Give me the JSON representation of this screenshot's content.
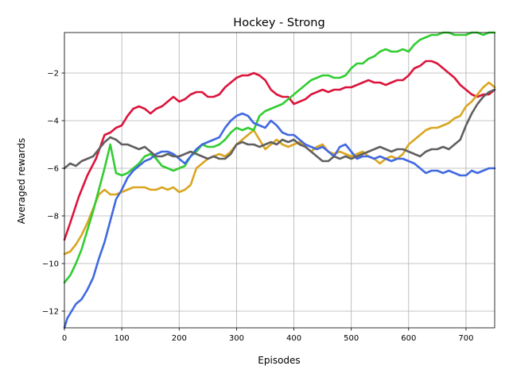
{
  "chart_data": {
    "type": "line",
    "title": "Hockey - Strong",
    "xlabel": "Episodes",
    "ylabel": "Averaged rewards",
    "xlim": [
      0,
      750
    ],
    "ylim": [
      -12.7,
      -0.3
    ],
    "xticks": [
      0,
      100,
      200,
      300,
      400,
      500,
      600,
      700
    ],
    "yticks": [
      -12,
      -10,
      -8,
      -6,
      -4,
      -2
    ],
    "xtick_labels": [
      "0",
      "100",
      "200",
      "300",
      "400",
      "500",
      "600",
      "700"
    ],
    "ytick_labels": [
      "−12",
      "−10",
      "−8",
      "−6",
      "−4",
      "−2"
    ],
    "grid": true,
    "series": [
      {
        "color": "#dc143c",
        "x": [
          0,
          10,
          25,
          40,
          55,
          70,
          80,
          90,
          100,
          110,
          120,
          130,
          140,
          150,
          160,
          170,
          180,
          190,
          200,
          210,
          220,
          230,
          240,
          250,
          260,
          270,
          280,
          290,
          300,
          310,
          320,
          330,
          340,
          350,
          360,
          370,
          380,
          390,
          400,
          410,
          420,
          430,
          440,
          450,
          460,
          470,
          480,
          490,
          500,
          510,
          520,
          530,
          540,
          550,
          560,
          570,
          580,
          590,
          600,
          610,
          620,
          630,
          640,
          650,
          660,
          670,
          680,
          690,
          700,
          710,
          720,
          730,
          740,
          750
        ],
        "y": [
          -9.0,
          -8.3,
          -7.2,
          -6.3,
          -5.6,
          -4.6,
          -4.5,
          -4.3,
          -4.2,
          -3.8,
          -3.5,
          -3.4,
          -3.5,
          -3.7,
          -3.5,
          -3.4,
          -3.2,
          -3.0,
          -3.2,
          -3.1,
          -2.9,
          -2.8,
          -2.8,
          -3.0,
          -3.0,
          -2.9,
          -2.6,
          -2.4,
          -2.2,
          -2.1,
          -2.1,
          -2.0,
          -2.1,
          -2.3,
          -2.7,
          -2.9,
          -3.0,
          -3.0,
          -3.3,
          -3.2,
          -3.1,
          -2.9,
          -2.8,
          -2.7,
          -2.8,
          -2.7,
          -2.7,
          -2.6,
          -2.6,
          -2.5,
          -2.4,
          -2.3,
          -2.4,
          -2.4,
          -2.5,
          -2.4,
          -2.3,
          -2.3,
          -2.1,
          -1.8,
          -1.7,
          -1.5,
          -1.5,
          -1.6,
          -1.8,
          -2.0,
          -2.2,
          -2.5,
          -2.7,
          -2.9,
          -3.0,
          -2.9,
          -2.9,
          -2.7
        ]
      },
      {
        "color": "#daa520",
        "x": [
          0,
          10,
          20,
          30,
          40,
          50,
          60,
          70,
          80,
          90,
          100,
          110,
          120,
          130,
          140,
          150,
          160,
          170,
          180,
          190,
          200,
          210,
          220,
          230,
          240,
          250,
          260,
          270,
          280,
          290,
          300,
          310,
          320,
          330,
          340,
          350,
          360,
          370,
          380,
          390,
          400,
          410,
          420,
          430,
          440,
          450,
          460,
          470,
          480,
          490,
          500,
          510,
          520,
          530,
          540,
          550,
          560,
          570,
          580,
          590,
          600,
          610,
          620,
          630,
          640,
          650,
          660,
          670,
          680,
          690,
          700,
          710,
          720,
          730,
          740,
          750
        ],
        "y": [
          -9.6,
          -9.5,
          -9.2,
          -8.8,
          -8.3,
          -7.7,
          -7.1,
          -6.9,
          -7.1,
          -7.1,
          -7.0,
          -6.9,
          -6.8,
          -6.8,
          -6.8,
          -6.9,
          -6.9,
          -6.8,
          -6.9,
          -6.8,
          -7.0,
          -6.9,
          -6.7,
          -6.0,
          -5.8,
          -5.6,
          -5.5,
          -5.4,
          -5.5,
          -5.3,
          -5.0,
          -4.8,
          -4.6,
          -4.4,
          -4.8,
          -5.2,
          -5.0,
          -4.8,
          -5.0,
          -5.1,
          -5.0,
          -4.9,
          -5.1,
          -5.3,
          -5.1,
          -5.0,
          -5.3,
          -5.4,
          -5.3,
          -5.4,
          -5.5,
          -5.4,
          -5.3,
          -5.5,
          -5.6,
          -5.8,
          -5.6,
          -5.5,
          -5.6,
          -5.4,
          -5.0,
          -4.8,
          -4.6,
          -4.4,
          -4.3,
          -4.3,
          -4.2,
          -4.1,
          -3.9,
          -3.8,
          -3.4,
          -3.2,
          -2.9,
          -2.6,
          -2.4,
          -2.6
        ]
      },
      {
        "color": "#32cd32",
        "x": [
          0,
          10,
          20,
          30,
          40,
          50,
          60,
          70,
          80,
          90,
          100,
          110,
          120,
          130,
          140,
          150,
          160,
          170,
          180,
          190,
          200,
          210,
          220,
          230,
          240,
          250,
          260,
          270,
          280,
          290,
          300,
          310,
          320,
          330,
          340,
          350,
          360,
          370,
          380,
          390,
          400,
          410,
          420,
          430,
          440,
          450,
          460,
          470,
          480,
          490,
          500,
          510,
          520,
          530,
          540,
          550,
          560,
          570,
          580,
          590,
          600,
          610,
          620,
          630,
          640,
          650,
          660,
          670,
          680,
          690,
          700,
          710,
          720,
          730,
          740,
          750
        ],
        "y": [
          -10.8,
          -10.5,
          -10.0,
          -9.4,
          -8.6,
          -7.8,
          -6.9,
          -6.0,
          -5.0,
          -6.2,
          -6.3,
          -6.2,
          -6.0,
          -5.8,
          -5.5,
          -5.4,
          -5.6,
          -5.9,
          -6.0,
          -6.1,
          -6.0,
          -5.9,
          -5.5,
          -5.3,
          -5.0,
          -5.1,
          -5.1,
          -5.0,
          -4.8,
          -4.5,
          -4.3,
          -4.4,
          -4.3,
          -4.4,
          -3.8,
          -3.6,
          -3.5,
          -3.4,
          -3.3,
          -3.1,
          -2.9,
          -2.7,
          -2.5,
          -2.3,
          -2.2,
          -2.1,
          -2.1,
          -2.2,
          -2.2,
          -2.1,
          -1.8,
          -1.6,
          -1.6,
          -1.4,
          -1.3,
          -1.1,
          -1.0,
          -1.1,
          -1.1,
          -1.0,
          -1.1,
          -0.8,
          -0.6,
          -0.5,
          -0.4,
          -0.4,
          -0.3,
          -0.3,
          -0.4,
          -0.4,
          -0.4,
          -0.3,
          -0.3,
          -0.4,
          -0.3,
          -0.3
        ]
      },
      {
        "color": "#4169e1",
        "x": [
          0,
          5,
          10,
          20,
          30,
          40,
          50,
          60,
          70,
          80,
          90,
          100,
          110,
          120,
          130,
          140,
          150,
          160,
          170,
          180,
          190,
          200,
          210,
          220,
          230,
          240,
          250,
          260,
          270,
          280,
          290,
          300,
          310,
          320,
          330,
          340,
          350,
          360,
          370,
          380,
          390,
          400,
          410,
          420,
          430,
          440,
          450,
          460,
          470,
          480,
          490,
          500,
          510,
          520,
          530,
          540,
          550,
          560,
          570,
          580,
          590,
          600,
          610,
          620,
          630,
          640,
          650,
          660,
          670,
          680,
          690,
          700,
          710,
          720,
          730,
          740,
          750
        ],
        "y": [
          -12.7,
          -12.3,
          -12.1,
          -11.7,
          -11.5,
          -11.1,
          -10.6,
          -9.8,
          -9.1,
          -8.2,
          -7.3,
          -6.9,
          -6.4,
          -6.1,
          -5.9,
          -5.7,
          -5.6,
          -5.4,
          -5.3,
          -5.3,
          -5.4,
          -5.6,
          -5.8,
          -5.5,
          -5.2,
          -5.0,
          -4.9,
          -4.8,
          -4.7,
          -4.3,
          -4.0,
          -3.8,
          -3.7,
          -3.8,
          -4.1,
          -4.2,
          -4.3,
          -4.0,
          -4.2,
          -4.5,
          -4.6,
          -4.6,
          -4.8,
          -5.0,
          -5.1,
          -5.2,
          -5.1,
          -5.3,
          -5.5,
          -5.1,
          -5.0,
          -5.3,
          -5.6,
          -5.5,
          -5.5,
          -5.6,
          -5.5,
          -5.6,
          -5.7,
          -5.6,
          -5.6,
          -5.7,
          -5.8,
          -6.0,
          -6.2,
          -6.1,
          -6.1,
          -6.2,
          -6.1,
          -6.2,
          -6.3,
          -6.3,
          -6.1,
          -6.2,
          -6.1,
          -6.0,
          -6.0
        ]
      },
      {
        "color": "#606060",
        "x": [
          0,
          10,
          20,
          30,
          40,
          50,
          60,
          70,
          80,
          90,
          100,
          110,
          120,
          130,
          140,
          150,
          160,
          170,
          180,
          190,
          200,
          210,
          220,
          230,
          240,
          250,
          260,
          270,
          280,
          290,
          300,
          310,
          320,
          330,
          340,
          350,
          360,
          370,
          380,
          390,
          400,
          410,
          420,
          430,
          440,
          450,
          460,
          470,
          480,
          490,
          500,
          510,
          520,
          530,
          540,
          550,
          560,
          570,
          580,
          590,
          600,
          610,
          620,
          630,
          640,
          650,
          660,
          670,
          680,
          690,
          700,
          710,
          720,
          730,
          740,
          750
        ],
        "y": [
          -6.0,
          -5.8,
          -5.9,
          -5.7,
          -5.6,
          -5.5,
          -5.2,
          -4.9,
          -4.7,
          -4.8,
          -5.0,
          -5.0,
          -5.1,
          -5.2,
          -5.1,
          -5.3,
          -5.5,
          -5.5,
          -5.4,
          -5.5,
          -5.5,
          -5.4,
          -5.3,
          -5.4,
          -5.5,
          -5.6,
          -5.5,
          -5.6,
          -5.6,
          -5.4,
          -5.0,
          -4.9,
          -5.0,
          -5.0,
          -5.1,
          -5.0,
          -4.9,
          -5.0,
          -4.8,
          -4.9,
          -4.8,
          -5.0,
          -5.1,
          -5.3,
          -5.5,
          -5.7,
          -5.7,
          -5.5,
          -5.6,
          -5.5,
          -5.6,
          -5.5,
          -5.4,
          -5.3,
          -5.2,
          -5.1,
          -5.2,
          -5.3,
          -5.2,
          -5.2,
          -5.3,
          -5.4,
          -5.5,
          -5.3,
          -5.2,
          -5.2,
          -5.1,
          -5.2,
          -5.0,
          -4.8,
          -4.2,
          -3.7,
          -3.3,
          -3.0,
          -2.8,
          -2.7
        ]
      }
    ]
  }
}
